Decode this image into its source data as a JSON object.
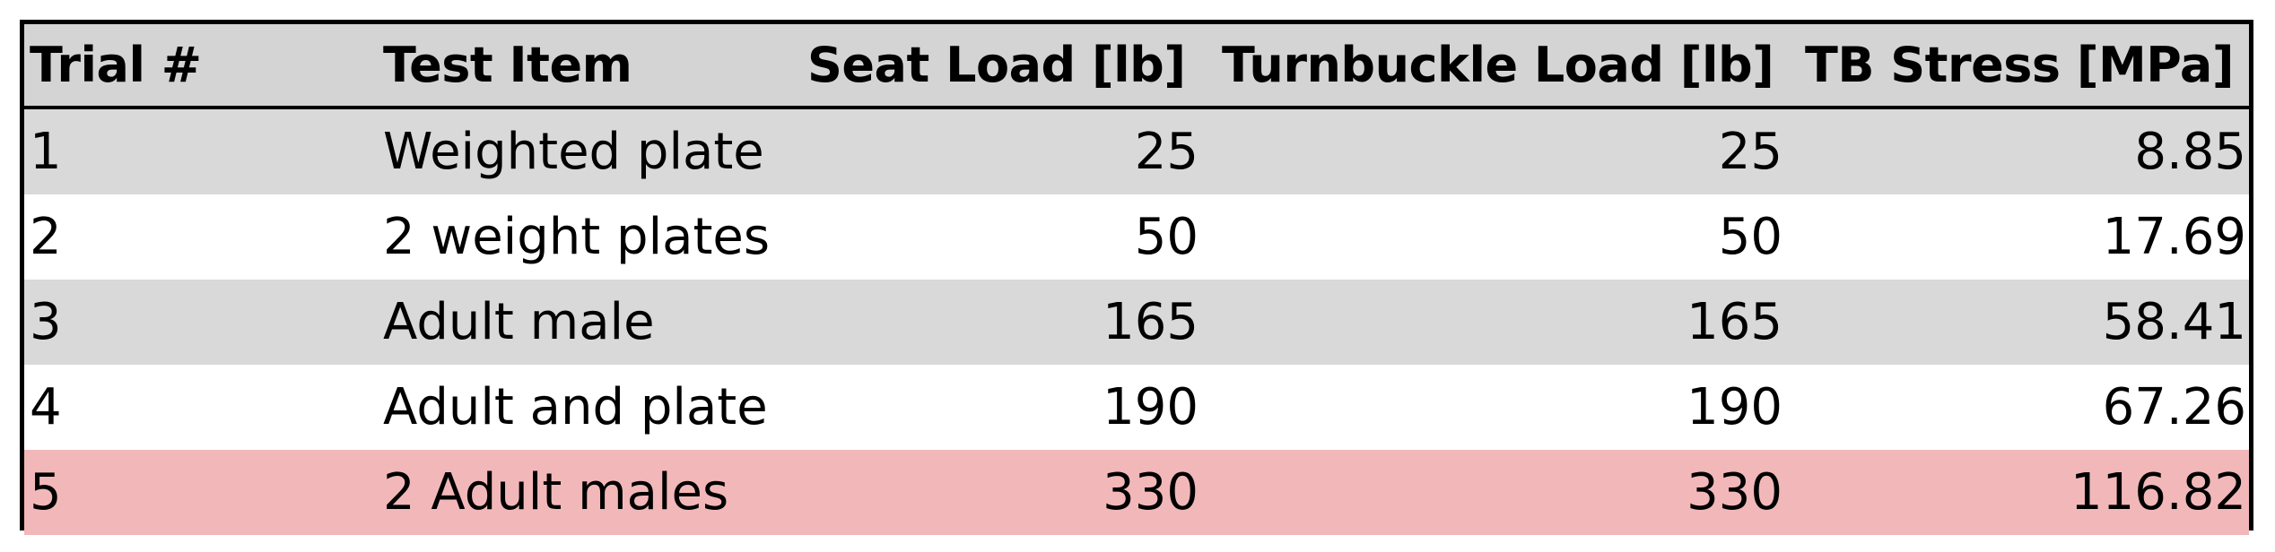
{
  "table": {
    "columns": [
      "Trial #",
      "Test Item",
      "Seat Load [lb]",
      "Turnbuckle Load [lb]",
      "TB Stress [MPa]"
    ],
    "rows": [
      {
        "trial": "1",
        "item": "Weighted plate",
        "seat": "25",
        "turn": "25",
        "stress": "8.85",
        "bg": "#d9d9d9"
      },
      {
        "trial": "2",
        "item": "2 weight plates",
        "seat": "50",
        "turn": "50",
        "stress": "17.69",
        "bg": "#ffffff"
      },
      {
        "trial": "3",
        "item": "Adult male",
        "seat": "165",
        "turn": "165",
        "stress": "58.41",
        "bg": "#d9d9d9"
      },
      {
        "trial": "4",
        "item": "Adult and plate",
        "seat": "190",
        "turn": "190",
        "stress": "67.26",
        "bg": "#ffffff"
      },
      {
        "trial": "5",
        "item": "2 Adult males",
        "seat": "330",
        "turn": "330",
        "stress": "116.82",
        "bg": "#f2b8b9"
      }
    ]
  },
  "colors": {
    "header_bg": "#d4d4d4",
    "border": "#000000",
    "highlight_row": "#f2b8b9"
  }
}
